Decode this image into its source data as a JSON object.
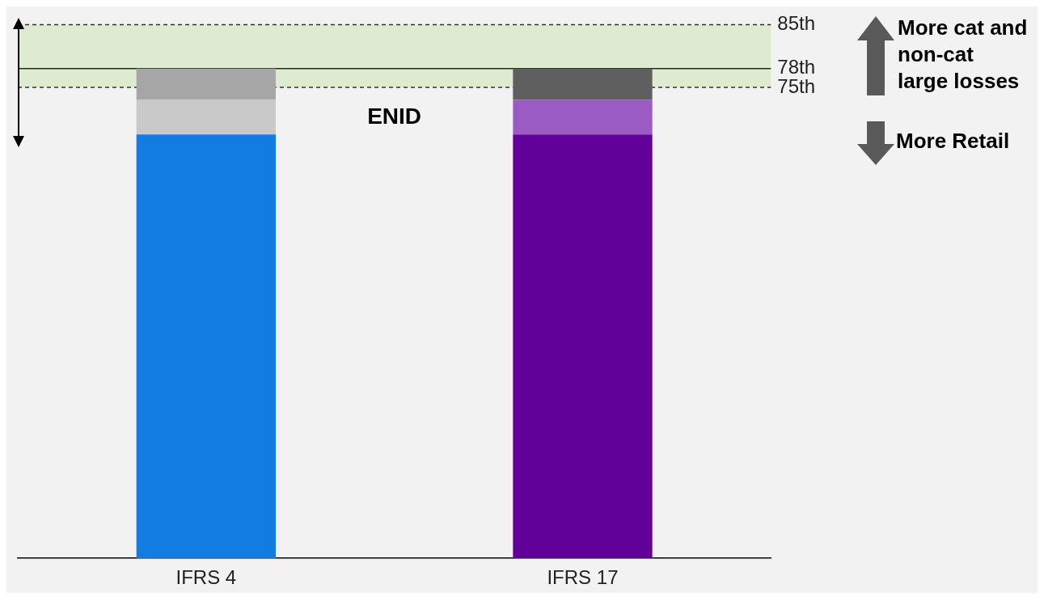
{
  "chart_data": {
    "type": "bar",
    "stacked": true,
    "categories": [
      "IFRS 4",
      "IFRS 17"
    ],
    "series": [
      {
        "colors": [
          "#127ce3",
          "#62009a"
        ],
        "values": [
          67.5,
          67.5
        ]
      },
      {
        "colors": [
          "#c9c9c9",
          "#9a5cc4"
        ],
        "values": [
          5.5,
          5.5
        ]
      },
      {
        "colors": [
          "#a6a6a6",
          "#5f5f5f"
        ],
        "values": [
          5,
          5
        ]
      }
    ],
    "ylim": [
      0,
      85
    ],
    "yticks": [
      {
        "value": 75,
        "label": "75th"
      },
      {
        "value": 78,
        "label": "78th"
      },
      {
        "value": 85,
        "label": "85th"
      }
    ],
    "grid": false,
    "legend": false,
    "bands": [
      {
        "axis": "y",
        "from": 75,
        "to": 85,
        "color": "#dfebd1"
      }
    ],
    "ref_lines": [
      {
        "axis": "y",
        "value": 85,
        "line_style": "dashed",
        "color": "#333333"
      },
      {
        "axis": "y",
        "value": 78,
        "line_style": "solid",
        "color": "#1e2e14"
      },
      {
        "axis": "y",
        "value": 75,
        "line_style": "dashed",
        "color": "#333333"
      }
    ],
    "annotations": [
      "ENID",
      "More cat and non-cat large losses",
      "More Retail"
    ]
  }
}
